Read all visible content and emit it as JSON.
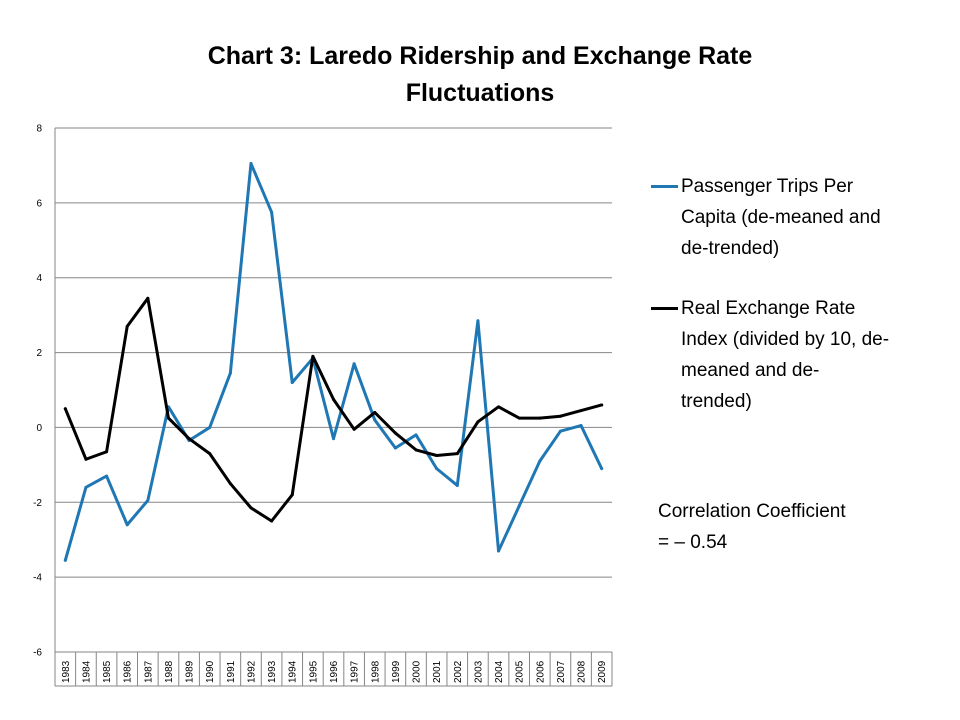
{
  "chart_data": {
    "type": "line",
    "title_lines": [
      "Chart 3: Laredo Ridership and Exchange Rate",
      "Fluctuations"
    ],
    "xlabel": "",
    "ylabel": "",
    "ylim": [
      -6,
      8
    ],
    "yticks": [
      -6,
      -4,
      -2,
      0,
      2,
      4,
      6,
      8
    ],
    "grid": true,
    "legend_position": "right",
    "x": [
      "1983",
      "1984",
      "1985",
      "1986",
      "1987",
      "1988",
      "1989",
      "1990",
      "1991",
      "1992",
      "1993",
      "1994",
      "1995",
      "1996",
      "1997",
      "1998",
      "1999",
      "2000",
      "2001",
      "2002",
      "2003",
      "2004",
      "2005",
      "2006",
      "2007",
      "2008",
      "2009"
    ],
    "series": [
      {
        "name": "Passenger Trips Per Capita (de-meaned and de-trended)",
        "color": "#1F77B4",
        "values": [
          -3.55,
          -1.6,
          -1.3,
          -2.6,
          -1.95,
          0.55,
          -0.35,
          0.0,
          1.45,
          7.05,
          5.75,
          1.2,
          1.85,
          -0.3,
          1.7,
          0.2,
          -0.55,
          -0.2,
          -1.1,
          -1.55,
          2.85,
          -3.3,
          -2.1,
          -0.9,
          -0.1,
          0.05,
          -1.1
        ]
      },
      {
        "name": "Real Exchange Rate Index (divided by 10, de-meaned and de-trended)",
        "color": "#000000",
        "values": [
          0.5,
          -0.85,
          -0.65,
          2.7,
          3.45,
          0.25,
          -0.3,
          -0.7,
          -1.5,
          -2.15,
          -2.5,
          -1.8,
          1.9,
          0.75,
          -0.05,
          0.4,
          -0.15,
          -0.6,
          -0.75,
          -0.7,
          0.15,
          0.55,
          0.25,
          0.25,
          0.3,
          0.45,
          0.6
        ]
      }
    ]
  },
  "legend": {
    "items": [
      {
        "lines": [
          "Passenger Trips Per",
          "Capita (de-meaned and",
          "de-trended)"
        ],
        "color": "#1F77B4"
      },
      {
        "lines": [
          "Real Exchange Rate",
          "Index (divided by 10, de-",
          "meaned and de-",
          "trended)"
        ],
        "color": "#000000"
      }
    ]
  },
  "annotation": {
    "line1": "Correlation Coefficient",
    "line2": "= – 0.54"
  }
}
